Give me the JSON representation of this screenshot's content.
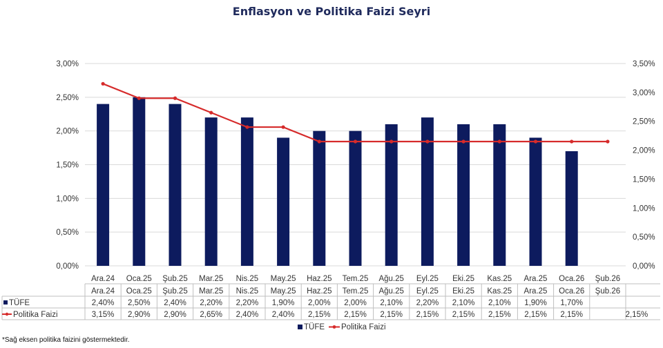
{
  "title": "Enflasyon ve Politika Faizi Seyri",
  "footnote": "*Sağ eksen politika faizini göstermektedir.",
  "colors": {
    "bar": "#0d1b5e",
    "line": "#d62b2b",
    "grid": "#d9d9d9",
    "title": "#1f2a5c"
  },
  "chart_data": {
    "type": "bar",
    "categories": [
      "Ara.24",
      "Oca.25",
      "Şub.25",
      "Mar.25",
      "Nis.25",
      "May.25",
      "Haz.25",
      "Tem.25",
      "Ağu.25",
      "Eyl.25",
      "Eki.25",
      "Kas.25",
      "Ara.25",
      "Oca.26",
      "Şub.26"
    ],
    "series": [
      {
        "name": "TÜFE",
        "type": "bar",
        "axis": "left",
        "values": [
          2.4,
          2.5,
          2.4,
          2.2,
          2.2,
          1.9,
          2.0,
          2.0,
          2.1,
          2.2,
          2.1,
          2.1,
          1.9,
          1.7,
          null
        ],
        "labels": [
          "2,40%",
          "2,50%",
          "2,40%",
          "2,20%",
          "2,20%",
          "1,90%",
          "2,00%",
          "2,00%",
          "2,10%",
          "2,20%",
          "2,10%",
          "2,10%",
          "1,90%",
          "1,70%",
          ""
        ]
      },
      {
        "name": "Politika Faizi",
        "type": "line",
        "axis": "right",
        "values": [
          3.15,
          2.9,
          2.9,
          2.65,
          2.4,
          2.4,
          2.15,
          2.15,
          2.15,
          2.15,
          2.15,
          2.15,
          2.15,
          2.15,
          2.15
        ],
        "labels": [
          "3,15%",
          "2,90%",
          "2,90%",
          "2,65%",
          "2,40%",
          "2,40%",
          "2,15%",
          "2,15%",
          "2,15%",
          "2,15%",
          "2,15%",
          "2,15%",
          "2,15%",
          "2,15%",
          "2,15%"
        ]
      }
    ],
    "left_axis": {
      "ylim": [
        0,
        3.0
      ],
      "ticks": [
        "0,00%",
        "0,50%",
        "1,00%",
        "1,50%",
        "2,00%",
        "2,50%",
        "3,00%"
      ]
    },
    "right_axis": {
      "ylim": [
        0,
        3.5
      ],
      "ticks": [
        "0,00%",
        "0,50%",
        "1,00%",
        "1,50%",
        "2,00%",
        "2,50%",
        "3,00%",
        "3,50%"
      ]
    },
    "grid": true,
    "legend_position": "bottom",
    "data_table": true
  }
}
